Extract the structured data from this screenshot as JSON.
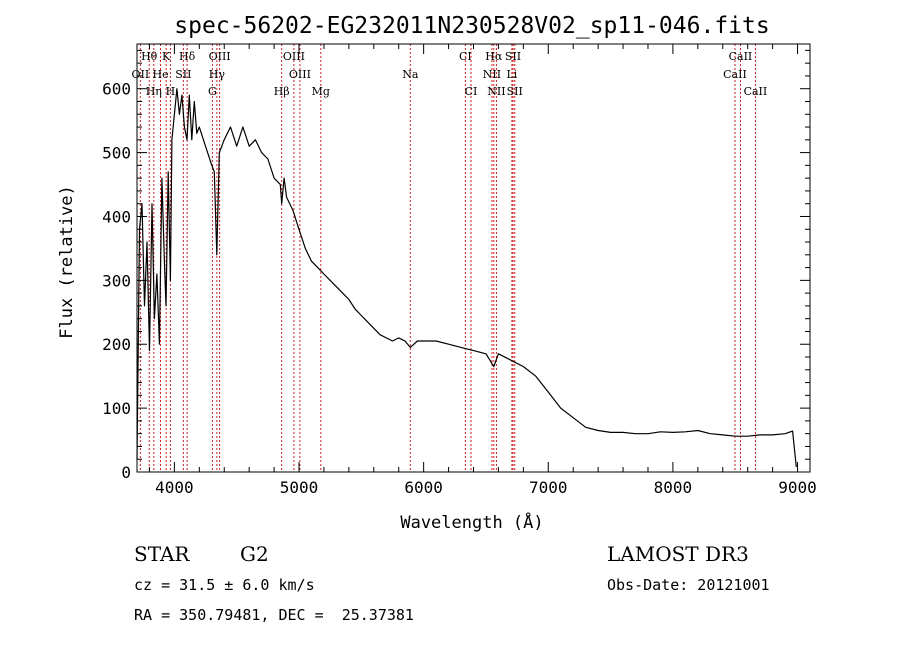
{
  "chart_data": {
    "type": "line",
    "title": "spec-56202-EG232011N230528V02_sp11-046.fits",
    "xlabel": "Wavelength (Å)",
    "ylabel": "Flux (relative)",
    "xlim": [
      3700,
      9100
    ],
    "ylim": [
      0,
      670
    ],
    "xticks": [
      {
        "value": 4000,
        "label": "4000"
      },
      {
        "value": 5000,
        "label": "5000"
      },
      {
        "value": 6000,
        "label": "6000"
      },
      {
        "value": 7000,
        "label": "7000"
      },
      {
        "value": 8000,
        "label": "8000"
      },
      {
        "value": 9000,
        "label": "9000"
      }
    ],
    "yticks": [
      {
        "value": 0,
        "label": "0"
      },
      {
        "value": 100,
        "label": "100"
      },
      {
        "value": 200,
        "label": "200"
      },
      {
        "value": 300,
        "label": "300"
      },
      {
        "value": 400,
        "label": "400"
      },
      {
        "value": 500,
        "label": "500"
      },
      {
        "value": 600,
        "label": "600"
      }
    ],
    "spectrum": {
      "x": [
        3700,
        3720,
        3740,
        3760,
        3780,
        3800,
        3820,
        3840,
        3860,
        3880,
        3900,
        3920,
        3933,
        3950,
        3968,
        3980,
        4000,
        4020,
        4040,
        4060,
        4080,
        4101,
        4120,
        4140,
        4160,
        4180,
        4200,
        4250,
        4300,
        4320,
        4340,
        4360,
        4400,
        4450,
        4500,
        4550,
        4600,
        4650,
        4700,
        4750,
        4800,
        4850,
        4861,
        4880,
        4900,
        4950,
        5000,
        5050,
        5100,
        5150,
        5200,
        5250,
        5300,
        5350,
        5400,
        5450,
        5500,
        5550,
        5600,
        5650,
        5700,
        5750,
        5800,
        5850,
        5893,
        5950,
        6000,
        6100,
        6200,
        6300,
        6400,
        6500,
        6563,
        6600,
        6700,
        6800,
        6900,
        7000,
        7100,
        7200,
        7300,
        7400,
        7500,
        7600,
        7700,
        7800,
        7900,
        8000,
        8100,
        8200,
        8300,
        8400,
        8500,
        8600,
        8700,
        8800,
        8900,
        8960,
        8990
      ],
      "y": [
        20,
        380,
        420,
        260,
        360,
        190,
        420,
        240,
        310,
        200,
        460,
        330,
        260,
        470,
        300,
        520,
        560,
        600,
        560,
        590,
        540,
        520,
        590,
        520,
        580,
        530,
        540,
        510,
        480,
        470,
        340,
        500,
        520,
        540,
        510,
        540,
        510,
        520,
        500,
        490,
        460,
        450,
        420,
        460,
        430,
        410,
        380,
        350,
        330,
        320,
        310,
        300,
        290,
        280,
        270,
        255,
        245,
        235,
        225,
        215,
        210,
        205,
        210,
        205,
        195,
        205,
        205,
        205,
        200,
        195,
        190,
        185,
        165,
        185,
        175,
        165,
        150,
        125,
        100,
        85,
        70,
        65,
        62,
        62,
        60,
        60,
        63,
        62,
        63,
        65,
        60,
        58,
        56,
        56,
        58,
        58,
        60,
        64,
        8
      ]
    },
    "lines": [
      {
        "name": "Hθ",
        "x": 3798,
        "row": 0
      },
      {
        "name": "K",
        "x": 3934,
        "row": 0
      },
      {
        "name": "Hδ",
        "x": 4102,
        "row": 0
      },
      {
        "name": "OIII",
        "x": 4363,
        "row": 0
      },
      {
        "name": "OIII",
        "x": 4959,
        "row": 0
      },
      {
        "name": "CI",
        "x": 6335,
        "row": 0
      },
      {
        "name": "Hα",
        "x": 6563,
        "row": 0
      },
      {
        "name": "SII",
        "x": 6717,
        "row": 0
      },
      {
        "name": "CaII",
        "x": 8542,
        "row": 0
      },
      {
        "name": "OII",
        "x": 3727,
        "row": 1
      },
      {
        "name": "He",
        "x": 3889,
        "row": 1
      },
      {
        "name": "SII",
        "x": 4072,
        "row": 1
      },
      {
        "name": "Hγ",
        "x": 4341,
        "row": 1
      },
      {
        "name": "OIII",
        "x": 5007,
        "row": 1
      },
      {
        "name": "Na",
        "x": 5893,
        "row": 1
      },
      {
        "name": "NII",
        "x": 6548,
        "row": 1
      },
      {
        "name": "Li",
        "x": 6708,
        "row": 1
      },
      {
        "name": "CaII",
        "x": 8498,
        "row": 1
      },
      {
        "name": "Hη",
        "x": 3835,
        "row": 2
      },
      {
        "name": "H",
        "x": 3968,
        "row": 2
      },
      {
        "name": "G",
        "x": 4305,
        "row": 2
      },
      {
        "name": "Hβ",
        "x": 4861,
        "row": 2
      },
      {
        "name": "Mg",
        "x": 5175,
        "row": 2
      },
      {
        "name": "CI",
        "x": 6380,
        "row": 2
      },
      {
        "name": "NII",
        "x": 6584,
        "row": 2
      },
      {
        "name": "SII",
        "x": 6731,
        "row": 2
      },
      {
        "name": "CaII",
        "x": 8662,
        "row": 2
      }
    ]
  },
  "info": {
    "object_type": "STAR",
    "subclass": "G2",
    "survey": "LAMOST DR3",
    "redshift": "cz = 31.5 ± 6.0 km/s",
    "obs_date": "Obs-Date: 20121001",
    "coordinates": "RA = 350.79481, DEC =  25.37381"
  },
  "colors": {
    "spectrum": "#000000",
    "line_markers": "#cc2020",
    "axes": "#000000",
    "background": "#ffffff"
  }
}
